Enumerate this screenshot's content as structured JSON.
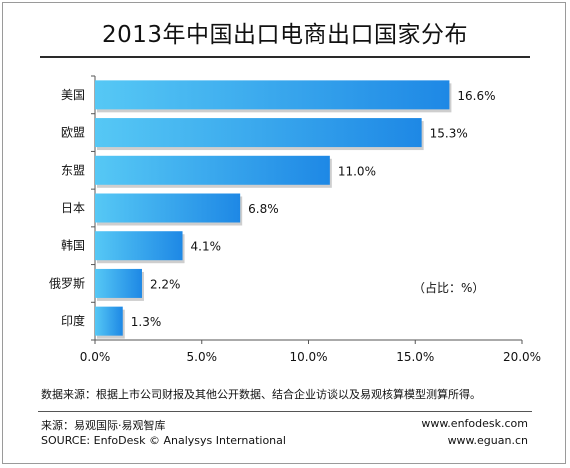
{
  "chart_data": {
    "type": "bar",
    "orientation": "horizontal",
    "title": "2013年中国出口电商出口国家分布",
    "categories": [
      "美国",
      "欧盟",
      "东盟",
      "日本",
      "韩国",
      "俄罗斯",
      "印度"
    ],
    "values": [
      16.6,
      15.3,
      11.0,
      6.8,
      4.1,
      2.2,
      1.3
    ],
    "value_labels": [
      "16.6%",
      "15.3%",
      "11.0%",
      "6.8%",
      "4.1%",
      "2.2%",
      "1.3%"
    ],
    "xlim": [
      0,
      20
    ],
    "xticks": [
      0,
      5,
      10,
      15,
      20
    ],
    "xtick_labels": [
      "0.0%",
      "5.0%",
      "10.0%",
      "15.0%",
      "20.0%"
    ],
    "unit_note": "（占比：%）",
    "bar_color": "#1e88e5",
    "bar_color_light": "#56c8f5"
  },
  "footer": {
    "note": "数据来源：根据上市公司财报及其他公开数据、结合企业访谈以及易观核算模型测算所得。",
    "source_cn": "来源：易观国际·易观智库",
    "source_en": "SOURCE: EnfoDesk © Analysys International",
    "url1": "www.enfodesk.com",
    "url2": "www.eguan.cn"
  }
}
